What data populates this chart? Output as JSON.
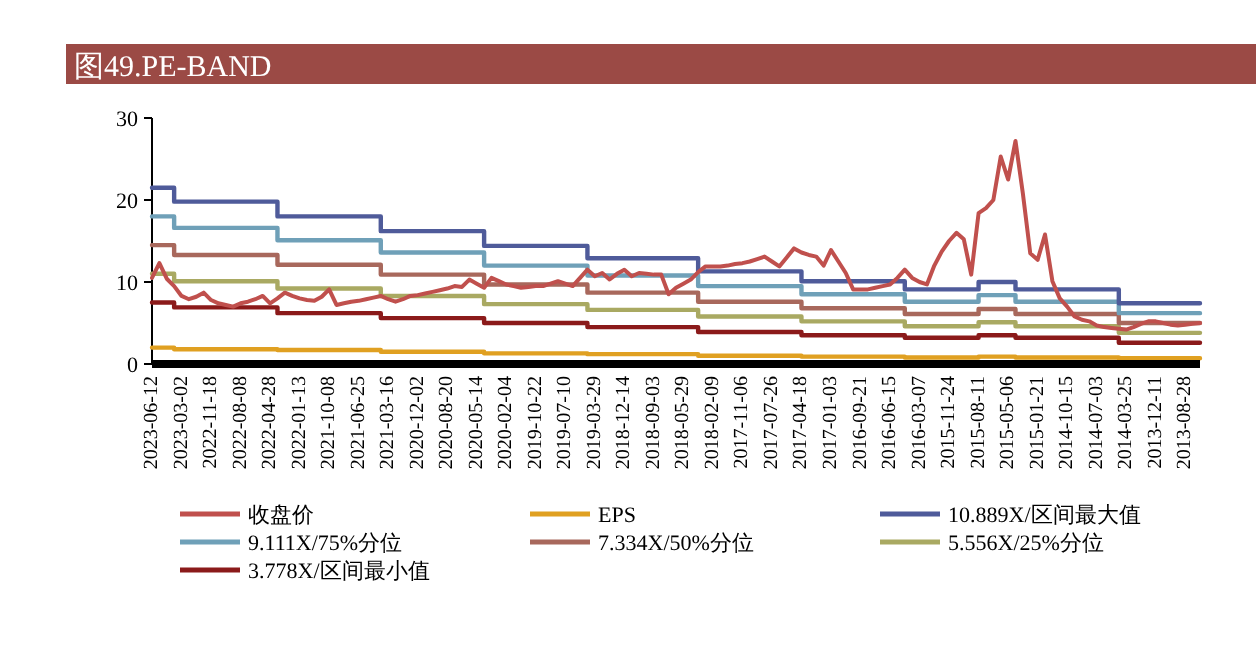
{
  "chart_data": {
    "type": "line",
    "title": "图49.PE-BAND",
    "categories": [
      "2023-06-12",
      null,
      null,
      null,
      "2023-03-02",
      null,
      null,
      null,
      "2022-11-18",
      null,
      null,
      null,
      "2022-08-08",
      null,
      null,
      null,
      "2022-04-28",
      null,
      null,
      null,
      "2022-01-13",
      null,
      null,
      null,
      "2021-10-08",
      null,
      null,
      null,
      "2021-06-25",
      null,
      null,
      null,
      "2021-03-16",
      null,
      null,
      null,
      "2020-12-02",
      null,
      null,
      null,
      "2020-08-20",
      null,
      null,
      null,
      "2020-05-14",
      null,
      null,
      null,
      "2020-02-04",
      null,
      null,
      null,
      "2019-10-22",
      null,
      null,
      null,
      "2019-07-10",
      null,
      null,
      null,
      "2019-03-29",
      null,
      null,
      null,
      "2018-12-14",
      null,
      null,
      null,
      "2018-09-03",
      null,
      null,
      null,
      "2018-05-29",
      null,
      null,
      null,
      "2018-02-09",
      null,
      null,
      null,
      "2017-11-06",
      null,
      null,
      null,
      "2017-07-26",
      null,
      null,
      null,
      "2017-04-18",
      null,
      null,
      null,
      "2017-01-03",
      null,
      null,
      null,
      "2016-09-21",
      null,
      null,
      null,
      "2016-06-15",
      null,
      null,
      null,
      "2016-03-07",
      null,
      null,
      null,
      "2015-11-24",
      null,
      null,
      null,
      "2015-08-11",
      null,
      null,
      null,
      "2015-05-06",
      null,
      null,
      null,
      "2015-01-21",
      null,
      null,
      null,
      "2014-10-15",
      null,
      null,
      null,
      "2014-07-03",
      null,
      null,
      null,
      "2014-03-25",
      null,
      null,
      null,
      "2013-12-11",
      null,
      null,
      null,
      "2013-08-28",
      null,
      null
    ],
    "series": [
      {
        "name": "收盘价",
        "color": "#c0504d",
        "values": [
          10.5,
          12.3,
          10.4,
          9.5,
          8.3,
          7.9,
          8.2,
          8.7,
          7.8,
          7.4,
          7.2,
          7.0,
          7.4,
          7.6,
          7.9,
          8.3,
          7.4,
          8.0,
          8.7,
          8.3,
          8.0,
          7.8,
          7.7,
          8.2,
          9.1,
          7.2,
          7.4,
          7.6,
          7.7,
          7.9,
          8.1,
          8.3,
          7.9,
          7.6,
          7.9,
          8.3,
          8.4,
          8.6,
          8.8,
          9.0,
          9.2,
          9.5,
          9.4,
          10.3,
          9.8,
          9.3,
          10.5,
          10.1,
          9.7,
          9.5,
          9.3,
          9.4,
          9.5,
          9.5,
          9.8,
          10.1,
          9.8,
          9.5,
          10.5,
          11.5,
          10.7,
          11.1,
          10.3,
          11.0,
          11.5,
          10.7,
          11.1,
          11.0,
          10.9,
          10.9,
          8.5,
          9.3,
          9.8,
          10.3,
          11.2,
          11.9,
          11.9,
          11.9,
          12.0,
          12.2,
          12.3,
          12.5,
          12.8,
          13.1,
          12.5,
          11.9,
          13.0,
          14.1,
          13.6,
          13.3,
          13.1,
          12.0,
          13.9,
          12.5,
          11.1,
          9.1,
          9.1,
          9.1,
          9.3,
          9.5,
          9.7,
          10.5,
          11.5,
          10.5,
          10.0,
          9.7,
          12.0,
          13.7,
          15.0,
          16.0,
          15.2,
          10.9,
          18.4,
          19.0,
          20.0,
          25.3,
          22.5,
          27.2,
          20.8,
          13.5,
          12.7,
          15.8,
          10.1,
          8.0,
          7.0,
          5.8,
          5.4,
          5.2,
          4.7,
          4.5,
          4.4,
          4.3,
          4.2,
          4.5,
          4.9,
          5.2,
          5.2,
          5.0,
          4.8,
          4.7,
          4.8,
          4.9,
          5.0
        ]
      },
      {
        "name": "EPS",
        "type": "step",
        "color": "#e0a021",
        "values": [
          2,
          2,
          2,
          1.8,
          1.8,
          1.8,
          1.8,
          1.8,
          1.8,
          1.8,
          1.8,
          1.8,
          1.8,
          1.8,
          1.8,
          1.8,
          1.8,
          1.7,
          1.7,
          1.7,
          1.7,
          1.7,
          1.7,
          1.7,
          1.7,
          1.7,
          1.7,
          1.7,
          1.7,
          1.7,
          1.7,
          1.5,
          1.5,
          1.5,
          1.5,
          1.5,
          1.5,
          1.5,
          1.5,
          1.5,
          1.5,
          1.5,
          1.5,
          1.5,
          1.5,
          1.3,
          1.3,
          1.3,
          1.3,
          1.3,
          1.3,
          1.3,
          1.3,
          1.3,
          1.3,
          1.3,
          1.3,
          1.3,
          1.3,
          1.2,
          1.2,
          1.2,
          1.2,
          1.2,
          1.2,
          1.2,
          1.2,
          1.2,
          1.2,
          1.2,
          1.2,
          1.2,
          1.2,
          1.2,
          1,
          1,
          1,
          1,
          1,
          1,
          1,
          1,
          1,
          1,
          1,
          1,
          1,
          1,
          0.9,
          0.9,
          0.9,
          0.9,
          0.9,
          0.9,
          0.9,
          0.9,
          0.9,
          0.9,
          0.9,
          0.9,
          0.9,
          0.9,
          0.8,
          0.8,
          0.8,
          0.8,
          0.8,
          0.8,
          0.8,
          0.8,
          0.8,
          0.8,
          0.9,
          0.9,
          0.9,
          0.9,
          0.9,
          0.8,
          0.8,
          0.8,
          0.8,
          0.8,
          0.8,
          0.8,
          0.8,
          0.8,
          0.8,
          0.8,
          0.8,
          0.8,
          0.8,
          0.7,
          0.7,
          0.7,
          0.7,
          0.7,
          0.7,
          0.7,
          0.7,
          0.7,
          0.7,
          0.7,
          0.7
        ]
      },
      {
        "name": "10.889X/区间最大值",
        "type": "step",
        "color": "#4f5b9a",
        "values": [
          21.5,
          21.5,
          21.5,
          19.8,
          19.8,
          19.8,
          19.8,
          19.8,
          19.8,
          19.8,
          19.8,
          19.8,
          19.8,
          19.8,
          19.8,
          19.8,
          19.8,
          18,
          18,
          18,
          18,
          18,
          18,
          18,
          18,
          18,
          18,
          18,
          18,
          18,
          18,
          16.2,
          16.2,
          16.2,
          16.2,
          16.2,
          16.2,
          16.2,
          16.2,
          16.2,
          16.2,
          16.2,
          16.2,
          16.2,
          16.2,
          14.4,
          14.4,
          14.4,
          14.4,
          14.4,
          14.4,
          14.4,
          14.4,
          14.4,
          14.4,
          14.4,
          14.4,
          14.4,
          14.4,
          12.9,
          12.9,
          12.9,
          12.9,
          12.9,
          12.9,
          12.9,
          12.9,
          12.9,
          12.9,
          12.9,
          12.9,
          12.9,
          12.9,
          12.9,
          11.3,
          11.3,
          11.3,
          11.3,
          11.3,
          11.3,
          11.3,
          11.3,
          11.3,
          11.3,
          11.3,
          11.3,
          11.3,
          11.3,
          10.1,
          10.1,
          10.1,
          10.1,
          10.1,
          10.1,
          10.1,
          10.1,
          10.1,
          10.1,
          10.1,
          10.1,
          10.1,
          10.1,
          9.1,
          9.1,
          9.1,
          9.1,
          9.1,
          9.1,
          9.1,
          9.1,
          9.1,
          9.1,
          10,
          10,
          10,
          10,
          10,
          9.1,
          9.1,
          9.1,
          9.1,
          9.1,
          9.1,
          9.1,
          9.1,
          9.1,
          9.1,
          9.1,
          9.1,
          9.1,
          9.1,
          7.4,
          7.4,
          7.4,
          7.4,
          7.4,
          7.4,
          7.4,
          7.4,
          7.4,
          7.4,
          7.4,
          7.4
        ]
      },
      {
        "name": "9.111X/75%分位",
        "type": "step",
        "color": "#6fa0b8",
        "values": [
          18,
          18,
          18,
          16.6,
          16.6,
          16.6,
          16.6,
          16.6,
          16.6,
          16.6,
          16.6,
          16.6,
          16.6,
          16.6,
          16.6,
          16.6,
          16.6,
          15.1,
          15.1,
          15.1,
          15.1,
          15.1,
          15.1,
          15.1,
          15.1,
          15.1,
          15.1,
          15.1,
          15.1,
          15.1,
          15.1,
          13.6,
          13.6,
          13.6,
          13.6,
          13.6,
          13.6,
          13.6,
          13.6,
          13.6,
          13.6,
          13.6,
          13.6,
          13.6,
          13.6,
          12,
          12,
          12,
          12,
          12,
          12,
          12,
          12,
          12,
          12,
          12,
          12,
          12,
          12,
          10.8,
          10.8,
          10.8,
          10.8,
          10.8,
          10.8,
          10.8,
          10.8,
          10.8,
          10.8,
          10.8,
          10.8,
          10.8,
          10.8,
          10.8,
          9.5,
          9.5,
          9.5,
          9.5,
          9.5,
          9.5,
          9.5,
          9.5,
          9.5,
          9.5,
          9.5,
          9.5,
          9.5,
          9.5,
          8.5,
          8.5,
          8.5,
          8.5,
          8.5,
          8.5,
          8.5,
          8.5,
          8.5,
          8.5,
          8.5,
          8.5,
          8.5,
          8.5,
          7.6,
          7.6,
          7.6,
          7.6,
          7.6,
          7.6,
          7.6,
          7.6,
          7.6,
          7.6,
          8.4,
          8.4,
          8.4,
          8.4,
          8.4,
          7.6,
          7.6,
          7.6,
          7.6,
          7.6,
          7.6,
          7.6,
          7.6,
          7.6,
          7.6,
          7.6,
          7.6,
          7.6,
          7.6,
          6.2,
          6.2,
          6.2,
          6.2,
          6.2,
          6.2,
          6.2,
          6.2,
          6.2,
          6.2,
          6.2,
          6.2
        ]
      },
      {
        "name": "7.334X/50%分位",
        "type": "step",
        "color": "#a8685c",
        "values": [
          14.5,
          14.5,
          14.5,
          13.3,
          13.3,
          13.3,
          13.3,
          13.3,
          13.3,
          13.3,
          13.3,
          13.3,
          13.3,
          13.3,
          13.3,
          13.3,
          13.3,
          12.1,
          12.1,
          12.1,
          12.1,
          12.1,
          12.1,
          12.1,
          12.1,
          12.1,
          12.1,
          12.1,
          12.1,
          12.1,
          12.1,
          10.9,
          10.9,
          10.9,
          10.9,
          10.9,
          10.9,
          10.9,
          10.9,
          10.9,
          10.9,
          10.9,
          10.9,
          10.9,
          10.9,
          9.7,
          9.7,
          9.7,
          9.7,
          9.7,
          9.7,
          9.7,
          9.7,
          9.7,
          9.7,
          9.7,
          9.7,
          9.7,
          9.7,
          8.7,
          8.7,
          8.7,
          8.7,
          8.7,
          8.7,
          8.7,
          8.7,
          8.7,
          8.7,
          8.7,
          8.7,
          8.7,
          8.7,
          8.7,
          7.6,
          7.6,
          7.6,
          7.6,
          7.6,
          7.6,
          7.6,
          7.6,
          7.6,
          7.6,
          7.6,
          7.6,
          7.6,
          7.6,
          6.8,
          6.8,
          6.8,
          6.8,
          6.8,
          6.8,
          6.8,
          6.8,
          6.8,
          6.8,
          6.8,
          6.8,
          6.8,
          6.8,
          6.1,
          6.1,
          6.1,
          6.1,
          6.1,
          6.1,
          6.1,
          6.1,
          6.1,
          6.1,
          6.7,
          6.7,
          6.7,
          6.7,
          6.7,
          6.1,
          6.1,
          6.1,
          6.1,
          6.1,
          6.1,
          6.1,
          6.1,
          6.1,
          6.1,
          6.1,
          6.1,
          6.1,
          6.1,
          5,
          5,
          5,
          5,
          5,
          5,
          5,
          5,
          5,
          5,
          5,
          5
        ]
      },
      {
        "name": "5.556X/25%分位",
        "type": "step",
        "color": "#a9a962",
        "values": [
          11,
          11,
          11,
          10.1,
          10.1,
          10.1,
          10.1,
          10.1,
          10.1,
          10.1,
          10.1,
          10.1,
          10.1,
          10.1,
          10.1,
          10.1,
          10.1,
          9.2,
          9.2,
          9.2,
          9.2,
          9.2,
          9.2,
          9.2,
          9.2,
          9.2,
          9.2,
          9.2,
          9.2,
          9.2,
          9.2,
          8.3,
          8.3,
          8.3,
          8.3,
          8.3,
          8.3,
          8.3,
          8.3,
          8.3,
          8.3,
          8.3,
          8.3,
          8.3,
          8.3,
          7.3,
          7.3,
          7.3,
          7.3,
          7.3,
          7.3,
          7.3,
          7.3,
          7.3,
          7.3,
          7.3,
          7.3,
          7.3,
          7.3,
          6.6,
          6.6,
          6.6,
          6.6,
          6.6,
          6.6,
          6.6,
          6.6,
          6.6,
          6.6,
          6.6,
          6.6,
          6.6,
          6.6,
          6.6,
          5.8,
          5.8,
          5.8,
          5.8,
          5.8,
          5.8,
          5.8,
          5.8,
          5.8,
          5.8,
          5.8,
          5.8,
          5.8,
          5.8,
          5.2,
          5.2,
          5.2,
          5.2,
          5.2,
          5.2,
          5.2,
          5.2,
          5.2,
          5.2,
          5.2,
          5.2,
          5.2,
          5.2,
          4.6,
          4.6,
          4.6,
          4.6,
          4.6,
          4.6,
          4.6,
          4.6,
          4.6,
          4.6,
          5.1,
          5.1,
          5.1,
          5.1,
          5.1,
          4.6,
          4.6,
          4.6,
          4.6,
          4.6,
          4.6,
          4.6,
          4.6,
          4.6,
          4.6,
          4.6,
          4.6,
          4.6,
          4.6,
          3.8,
          3.8,
          3.8,
          3.8,
          3.8,
          3.8,
          3.8,
          3.8,
          3.8,
          3.8,
          3.8,
          3.8
        ]
      },
      {
        "name": "3.778X/区间最小值",
        "type": "step",
        "color": "#8b1a1a",
        "values": [
          7.5,
          7.5,
          7.5,
          6.9,
          6.9,
          6.9,
          6.9,
          6.9,
          6.9,
          6.9,
          6.9,
          6.9,
          6.9,
          6.9,
          6.9,
          6.9,
          6.9,
          6.2,
          6.2,
          6.2,
          6.2,
          6.2,
          6.2,
          6.2,
          6.2,
          6.2,
          6.2,
          6.2,
          6.2,
          6.2,
          6.2,
          5.6,
          5.6,
          5.6,
          5.6,
          5.6,
          5.6,
          5.6,
          5.6,
          5.6,
          5.6,
          5.6,
          5.6,
          5.6,
          5.6,
          5,
          5,
          5,
          5,
          5,
          5,
          5,
          5,
          5,
          5,
          5,
          5,
          5,
          5,
          4.5,
          4.5,
          4.5,
          4.5,
          4.5,
          4.5,
          4.5,
          4.5,
          4.5,
          4.5,
          4.5,
          4.5,
          4.5,
          4.5,
          4.5,
          3.9,
          3.9,
          3.9,
          3.9,
          3.9,
          3.9,
          3.9,
          3.9,
          3.9,
          3.9,
          3.9,
          3.9,
          3.9,
          3.9,
          3.5,
          3.5,
          3.5,
          3.5,
          3.5,
          3.5,
          3.5,
          3.5,
          3.5,
          3.5,
          3.5,
          3.5,
          3.5,
          3.5,
          3.2,
          3.2,
          3.2,
          3.2,
          3.2,
          3.2,
          3.2,
          3.2,
          3.2,
          3.2,
          3.5,
          3.5,
          3.5,
          3.5,
          3.5,
          3.2,
          3.2,
          3.2,
          3.2,
          3.2,
          3.2,
          3.2,
          3.2,
          3.2,
          3.2,
          3.2,
          3.2,
          3.2,
          3.2,
          2.6,
          2.6,
          2.6,
          2.6,
          2.6,
          2.6,
          2.6,
          2.6,
          2.6,
          2.6,
          2.6,
          2.6
        ]
      }
    ],
    "ylim": [
      0,
      30
    ],
    "yticks": [
      0,
      10,
      20,
      30
    ],
    "legend": "bottom"
  }
}
